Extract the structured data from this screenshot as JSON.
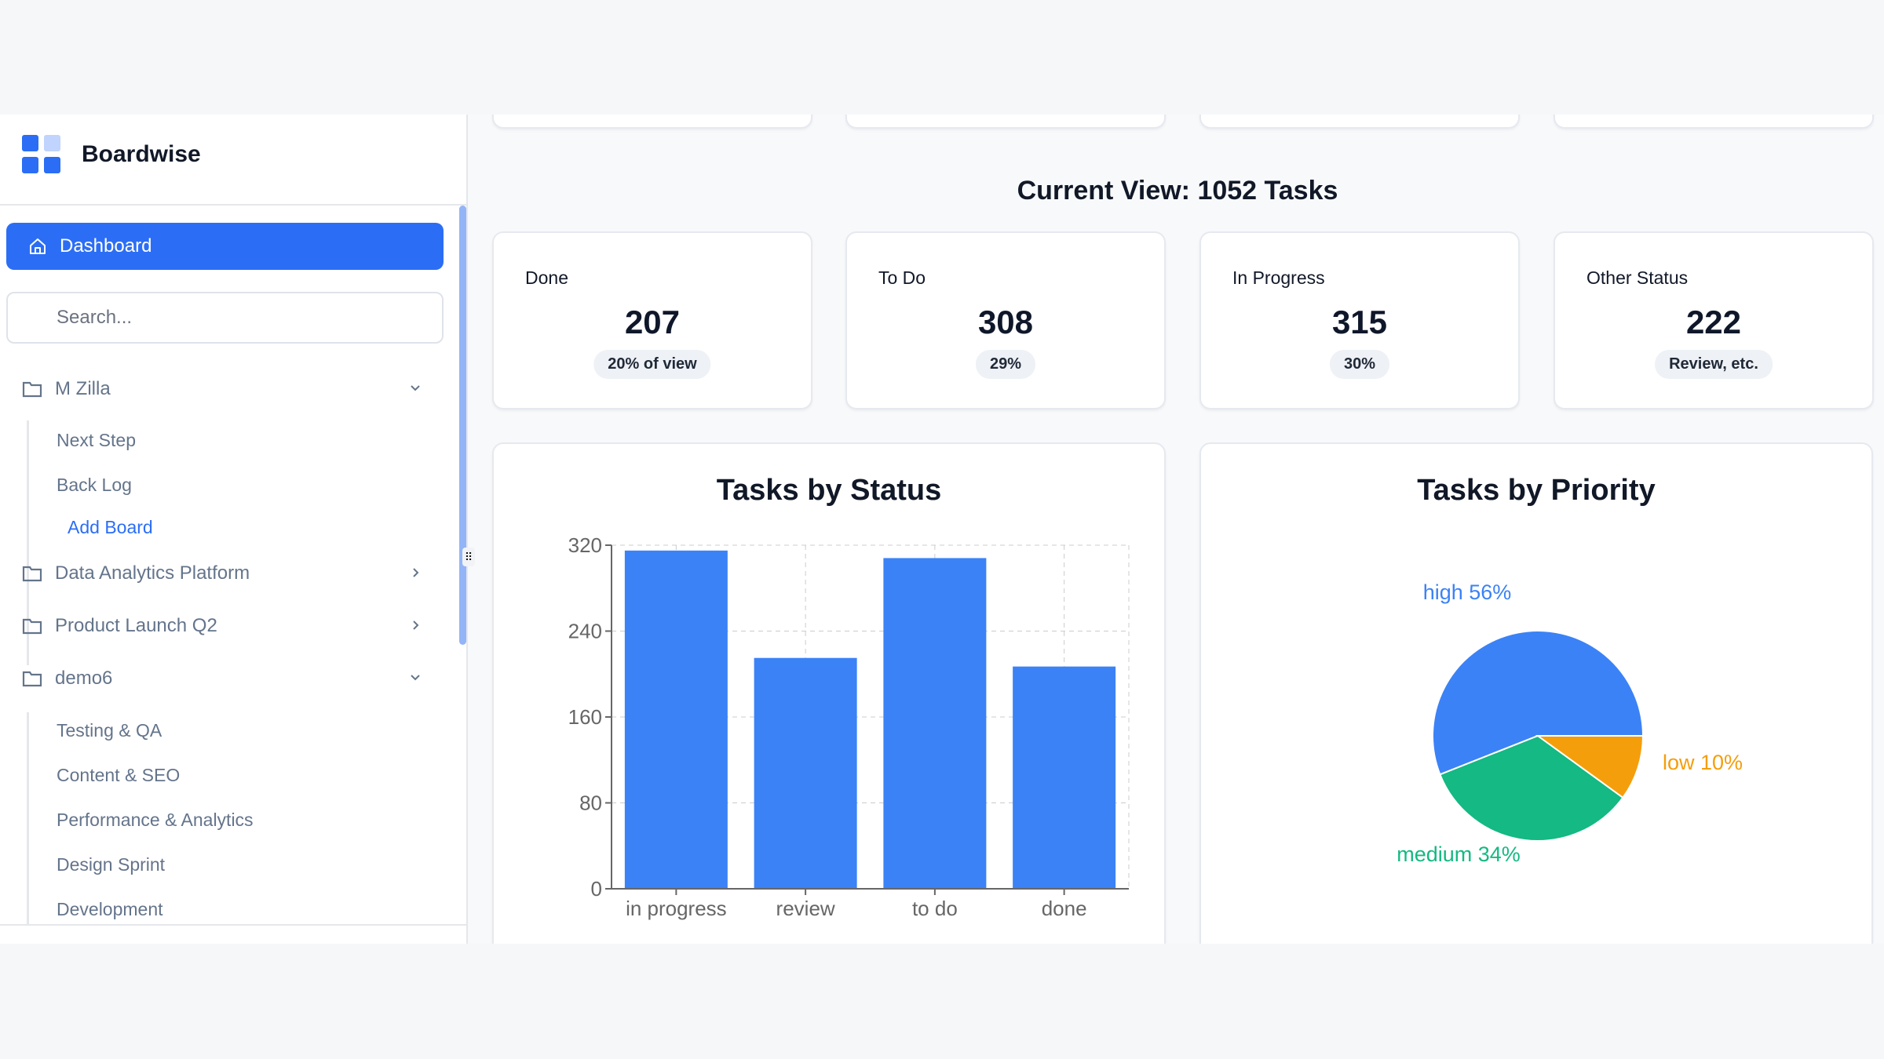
{
  "sidebar": {
    "brand": "Boardwise",
    "dashboard_label": "Dashboard",
    "search_placeholder": "Search...",
    "groups": [
      {
        "label": "M Zilla",
        "expanded": true,
        "items": [
          "Next Step",
          "Back Log"
        ],
        "add_label": "Add Board"
      },
      {
        "label": "Data Analytics Platform",
        "expanded": false
      },
      {
        "label": "Product Launch Q2",
        "expanded": false
      },
      {
        "label": "demo6",
        "expanded": true,
        "items": [
          "Testing & QA",
          "Content & SEO",
          "Performance & Analytics",
          "Design Sprint",
          "Development"
        ]
      }
    ]
  },
  "main": {
    "title": "Current View: 1052 Tasks",
    "stats": [
      {
        "label": "Done",
        "value": "207",
        "note": "20% of view"
      },
      {
        "label": "To Do",
        "value": "308",
        "note": "29%"
      },
      {
        "label": "In Progress",
        "value": "315",
        "note": "30%"
      },
      {
        "label": "Other Status",
        "value": "222",
        "note": "Review, etc."
      }
    ]
  },
  "chart_data": [
    {
      "type": "bar",
      "title": "Tasks by Status",
      "categories": [
        "in progress",
        "review",
        "to do",
        "done"
      ],
      "values": [
        315,
        215,
        308,
        207
      ],
      "ylim": [
        0,
        320
      ],
      "yticks": [
        "0",
        "80",
        "160",
        "240",
        "320"
      ],
      "grid": true,
      "color": "#3b82f6"
    },
    {
      "type": "pie",
      "title": "Tasks by Priority",
      "slices": [
        {
          "label": "high 56%",
          "value": 56,
          "color": "#3b82f6"
        },
        {
          "label": "medium 34%",
          "value": 34,
          "color": "#14b983"
        },
        {
          "label": "low 10%",
          "value": 10,
          "color": "#f59e0b"
        }
      ]
    }
  ]
}
